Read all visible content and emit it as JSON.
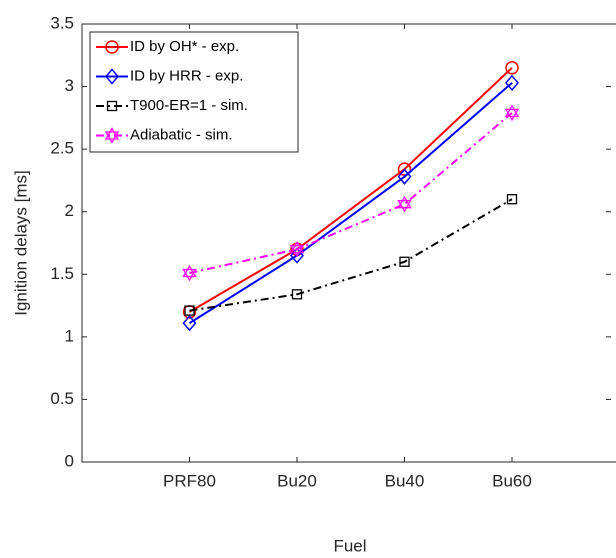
{
  "chart_data": {
    "type": "line",
    "x_label": "Fuel",
    "y_label": "Ignition delays [ms]",
    "categories": [
      "PRF80",
      "Bu20",
      "Bu40",
      "Bu60"
    ],
    "ylim": [
      0,
      3.5
    ],
    "yticks": [
      0,
      0.5,
      1,
      1.5,
      2,
      2.5,
      3,
      3.5
    ],
    "legend": "upper left",
    "series": [
      {
        "name": "ID by OH* - exp.",
        "color": "#ff0000",
        "marker": "circle",
        "line_style": "solid",
        "values": [
          1.2,
          1.7,
          2.34,
          3.15
        ]
      },
      {
        "name": "ID by HRR - exp.",
        "color": "#0000ff",
        "marker": "diamond",
        "line_style": "solid",
        "values": [
          1.11,
          1.65,
          2.28,
          3.03
        ]
      },
      {
        "name": "T900-ER=1 - sim.",
        "color": "#000000",
        "marker": "square",
        "line_style": "dashdot",
        "values": [
          1.21,
          1.34,
          1.6,
          2.1
        ]
      },
      {
        "name": "Adiabatic - sim.",
        "color": "#ff00ff",
        "marker": "hexagram",
        "line_style": "dashdot",
        "values": [
          1.51,
          1.7,
          2.06,
          2.79
        ]
      }
    ]
  }
}
